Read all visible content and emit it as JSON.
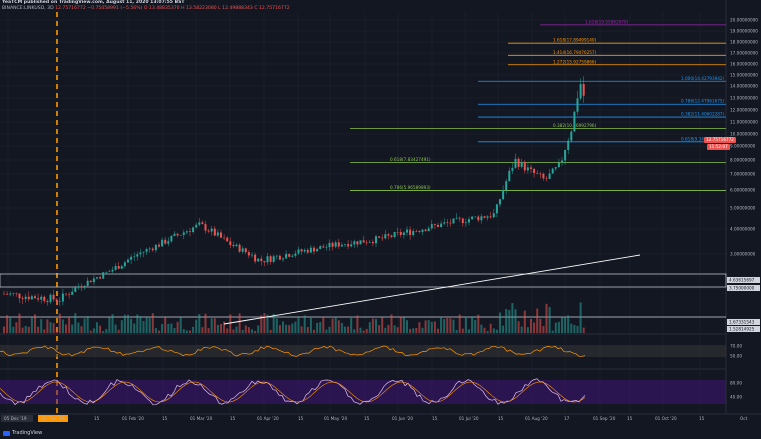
{
  "header": {
    "line1": "YeaTCM published on TradingView.com, August 11, 2020 13:07:55 BST",
    "symbol": "BINANCE:LINKUSD, 3D",
    "last": "12.75716772",
    "change": "−0.75058991 (−5.56%)",
    "o": "O 13.48835370",
    "h": "H 13.58223080",
    "l": "L 12.49888343",
    "c": "C 12.75716772"
  },
  "price_axis": {
    "ticks": [
      "20.00000000",
      "19.00000000",
      "18.00000000",
      "17.00000000",
      "16.00000000",
      "15.00000000",
      "14.00000000",
      "13.00000000",
      "12.00000000",
      "11.00000000",
      "10.00000000",
      "9.00000000",
      "8.00000000",
      "7.00000000",
      "6.00000000",
      "5.00000000",
      "4.00000000",
      "3.00000000",
      "2.00000000"
    ],
    "current_price_label": "12.75716772",
    "countdown_label": "11:52:07",
    "support_labels": [
      "4.63615697",
      "3.75000000",
      "1.67331543",
      "1.52814925"
    ]
  },
  "fib_levels": [
    {
      "label": "1.618(19.55982970)",
      "color": "#9c27b0",
      "value": 19.56
    },
    {
      "label": "1.618(17.89499140)",
      "color": "#ff9800",
      "value": 17.89
    },
    {
      "label": "1.414(16.79476257)",
      "color": "#ff9800",
      "value": 16.79
    },
    {
      "label": "1.272(15.92759866)",
      "color": "#ff9800",
      "value": 15.93
    },
    {
      "label": "1.000(14.42793942)",
      "color": "#2196f3",
      "value": 14.43
    },
    {
      "label": "0.786(12.47961675)",
      "color": "#2196f3",
      "value": 12.48
    },
    {
      "label": "0.382(11.40602287)",
      "color": "#2196f3",
      "value": 11.41
    },
    {
      "label": "0.382(10.46992796)",
      "color": "#8bc34a",
      "value": 10.47
    },
    {
      "label": "0.618(9.34723788)",
      "color": "#2196f3",
      "value": 9.35
    },
    {
      "label": "0.618(7.83427491)",
      "color": "#8bc34a",
      "value": 7.83
    },
    {
      "label": "0.786(5.96589893)",
      "color": "#8bc34a",
      "value": 5.97
    }
  ],
  "rsi_axis": {
    "ticks": [
      "70.00",
      "50.00"
    ]
  },
  "stoch_axis": {
    "ticks": [
      "80.00",
      "40.00"
    ]
  },
  "time_axis": {
    "labels": [
      "05 Dec '19",
      "01 Dec '19",
      "15",
      "01 Feb '20",
      "15",
      "01 Mar '20",
      "15",
      "01 Apr '20",
      "15",
      "01 May '20",
      "15",
      "01 Jun '20",
      "15",
      "01 Jul '20",
      "15",
      "01 Aug '20",
      "17",
      "01 Sep '20",
      "15",
      "01 Oct '20",
      "15",
      "Oct"
    ]
  },
  "footer": {
    "brand": "TradingView"
  },
  "colors": {
    "bull": "#26a69a",
    "bear": "#ef5350",
    "background": "#131722",
    "rsi": "#ff9800",
    "stoch_k": "#e1bee7",
    "stoch_d": "#ff9800",
    "stoch_band": "#4a148c"
  }
}
